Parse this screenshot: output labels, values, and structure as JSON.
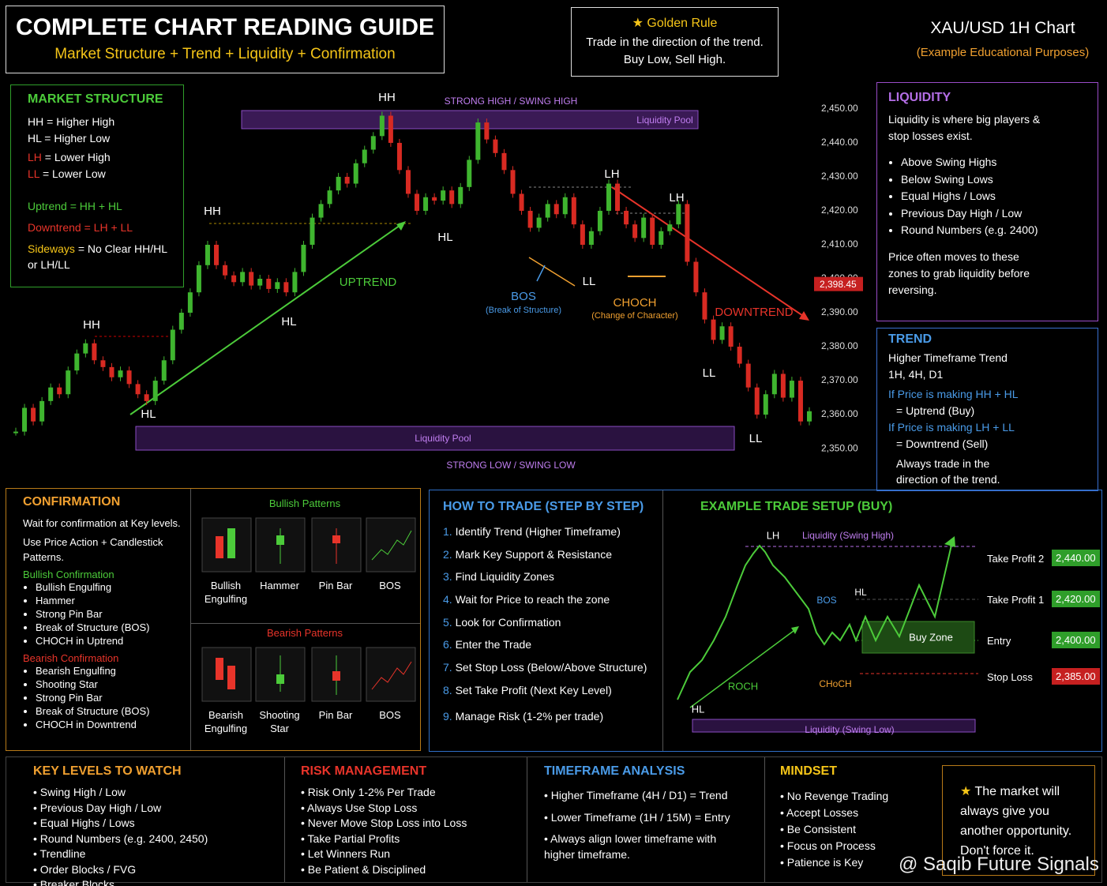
{
  "header": {
    "title": "COMPLETE CHART READING GUIDE",
    "subtitle": "Market Structure + Trend + Liquidity + Confirmation"
  },
  "golden_rule": {
    "title": "Golden Rule",
    "lines": [
      "Trade in the direction of the trend.",
      "Buy Low, Sell High."
    ]
  },
  "chart_header": {
    "title": "XAU/USD 1H Chart",
    "subtitle": "(Example Educational Purposes)"
  },
  "market_structure": {
    "title": "MARKET STRUCTURE",
    "items": [
      {
        "term": "HH",
        "def": "= Higher High"
      },
      {
        "term": "HL",
        "def": "= Higher Low"
      },
      {
        "term": "LH",
        "def": "= Lower High"
      },
      {
        "term": "LL",
        "def": "= Lower Low"
      }
    ],
    "rules": [
      {
        "term": "Uptrend",
        "def": "= HH + HL"
      },
      {
        "term": "Downtrend",
        "def": "= LH + LL"
      },
      {
        "term": "Sideways",
        "def": "= No Clear HH/HL or LH/LL"
      }
    ]
  },
  "main_chart": {
    "ylim": [
      2347,
      2453
    ],
    "yticks": [
      {
        "value": 2450,
        "label": "2,450.00"
      },
      {
        "value": 2440,
        "label": "2,440.00"
      },
      {
        "value": 2430,
        "label": "2,430.00"
      },
      {
        "value": 2420,
        "label": "2,420.00"
      },
      {
        "value": 2410,
        "label": "2,410.00"
      },
      {
        "value": 2400,
        "label": "2,400.00"
      },
      {
        "value": 2390,
        "label": "2,390.00"
      },
      {
        "value": 2380,
        "label": "2,380.00"
      },
      {
        "value": 2370,
        "label": "2,370.00"
      },
      {
        "value": 2360,
        "label": "2,360.00"
      },
      {
        "value": 2350,
        "label": "2,350.00"
      }
    ],
    "current_price": {
      "value": 2398.45,
      "label": "2,398.45"
    },
    "closes": [
      2355,
      2362,
      2358,
      2364,
      2368,
      2366,
      2373,
      2378,
      2381,
      2376,
      2374,
      2371,
      2373,
      2369,
      2366,
      2364,
      2370,
      2376,
      2385,
      2390,
      2396,
      2404,
      2410,
      2404,
      2401,
      2399,
      2402,
      2398,
      2400,
      2397,
      2399,
      2396,
      2402,
      2410,
      2418,
      2422,
      2426,
      2430,
      2428,
      2434,
      2438,
      2442,
      2448,
      2440,
      2432,
      2425,
      2420,
      2424,
      2423,
      2426,
      2422,
      2427,
      2435,
      2446,
      2441,
      2437,
      2432,
      2425,
      2420,
      2415,
      2418,
      2422,
      2419,
      2424,
      2416,
      2410,
      2414,
      2420,
      2428,
      2420,
      2416,
      2412,
      2418,
      2410,
      2414,
      2416,
      2422,
      2405,
      2396,
      2388,
      2382,
      2386,
      2380,
      2375,
      2368,
      2360,
      2366,
      2372,
      2365,
      2370,
      2358,
      2361
    ],
    "labels": [
      "HH",
      "HH",
      "HH",
      "HL",
      "HL",
      "HL",
      "LH",
      "LH",
      "LL",
      "LL",
      "LL",
      "UPTREND",
      "DOWNTREND",
      "BOS",
      "(Break of Structure)",
      "CHOCH",
      "(Change of Character)",
      "STRONG HIGH / SWING HIGH",
      "STRONG LOW / SWING LOW",
      "Liquidity Pool",
      "Liquidity Pool"
    ]
  },
  "liquidity": {
    "title": "LIQUIDITY",
    "intro": "Liquidity is where big players & stop losses exist.",
    "bullets": [
      "Above Swing Highs",
      "Below Swing Lows",
      "Equal Highs / Lows",
      "Previous Day High / Low",
      "Round Numbers (e.g. 2400)"
    ],
    "outro": "Price often moves to these zones to grab liquidity before reversing."
  },
  "trend": {
    "title": "TREND",
    "lines": [
      "Higher Timeframe Trend",
      "1H, 4H, D1"
    ],
    "up": [
      "If Price is making HH + HL",
      "= Uptrend (Buy)"
    ],
    "down": [
      "If Price is making LH + LL",
      "= Downtrend (Sell)"
    ],
    "outro": "Always trade in the direction of the trend."
  },
  "confirmation": {
    "title": "CONFIRMATION",
    "intro": [
      "Wait for confirmation at Key levels.",
      "Use Price Action + Candlestick Patterns."
    ],
    "bullish_title": "Bullish Confirmation",
    "bullish": [
      "Bullish Engulfing",
      "Hammer",
      "Strong Pin Bar",
      "Break of Structure (BOS)",
      "CHOCH in Uptrend"
    ],
    "bearish_title": "Bearish Confirmation",
    "bearish": [
      "Bearish Engulfing",
      "Shooting Star",
      "Strong Pin Bar",
      "Break of Structure (BOS)",
      "CHOCH in Downtrend"
    ]
  },
  "patterns": {
    "bullish_title": "Bullish Patterns",
    "bullish": [
      "Bullish Engulfing",
      "Hammer",
      "Pin Bar",
      "BOS"
    ],
    "bearish_title": "Bearish Patterns",
    "bearish": [
      "Bearish Engulfing",
      "Shooting Star",
      "Pin Bar",
      "BOS"
    ]
  },
  "how_to_trade": {
    "title": "HOW TO TRADE (STEP BY STEP)",
    "steps": [
      {
        "n": "1.",
        "text": "Identify Trend (Higher Timeframe)"
      },
      {
        "n": "2.",
        "text": "Mark Key Support & Resistance"
      },
      {
        "n": "3.",
        "text": "Find Liquidity Zones"
      },
      {
        "n": "4.",
        "text": "Wait for Price to reach the zone"
      },
      {
        "n": "5.",
        "text": "Look for Confirmation"
      },
      {
        "n": "6.",
        "text": "Enter the Trade"
      },
      {
        "n": "7.",
        "text": "Set Stop Loss (Below/Above Structure)"
      },
      {
        "n": "8.",
        "text": "Set Take Profit (Next Key Level)"
      },
      {
        "n": "9.",
        "text": "Manage Risk (1-2% per trade)"
      }
    ]
  },
  "example_setup": {
    "title": "EXAMPLE TRADE SETUP (BUY)",
    "labels": [
      "LH",
      "Liquidity (Swing High)",
      "BOS",
      "HL",
      "Buy Zone",
      "ROCH",
      "CHoCH",
      "HL",
      "Liquidity (Swing Low)"
    ],
    "levels": [
      {
        "label": "Take Profit 2",
        "price": "2,440.00"
      },
      {
        "label": "Take Profit 1",
        "price": "2,420.00"
      },
      {
        "label": "Entry",
        "price": "2,400.00"
      },
      {
        "label": "Stop Loss",
        "price": "2,385.00"
      }
    ]
  },
  "key_levels": {
    "title": "KEY LEVELS TO WATCH",
    "items": [
      "Swing High / Low",
      "Previous Day High / Low",
      "Equal Highs / Lows",
      "Round Numbers (e.g. 2400, 2450)",
      "Trendline",
      "Order Blocks / FVG",
      "Breaker Blocks"
    ]
  },
  "risk": {
    "title": "RISK MANAGEMENT",
    "items": [
      "Risk Only 1-2% Per Trade",
      "Always Use Stop Loss",
      "Never Move Stop Loss into Loss",
      "Take Partial Profits",
      "Let Winners Run",
      "Be Patient & Disciplined"
    ]
  },
  "timeframe": {
    "title": "TIMEFRAME ANALYSIS",
    "items": [
      "Higher Timeframe (4H / D1) = Trend",
      "Lower Timeframe (1H / 15M) = Entry",
      "Always align lower timeframe with higher timeframe."
    ]
  },
  "mindset": {
    "title": "MINDSET",
    "items": [
      "No Revenge Trading",
      "Accept Losses",
      "Be Consistent",
      "Focus on Process",
      "Patience is Key"
    ]
  },
  "quote": "The market will always give you another opportunity. Don't force it.",
  "watermark": "@ Saqib Future Signals"
}
